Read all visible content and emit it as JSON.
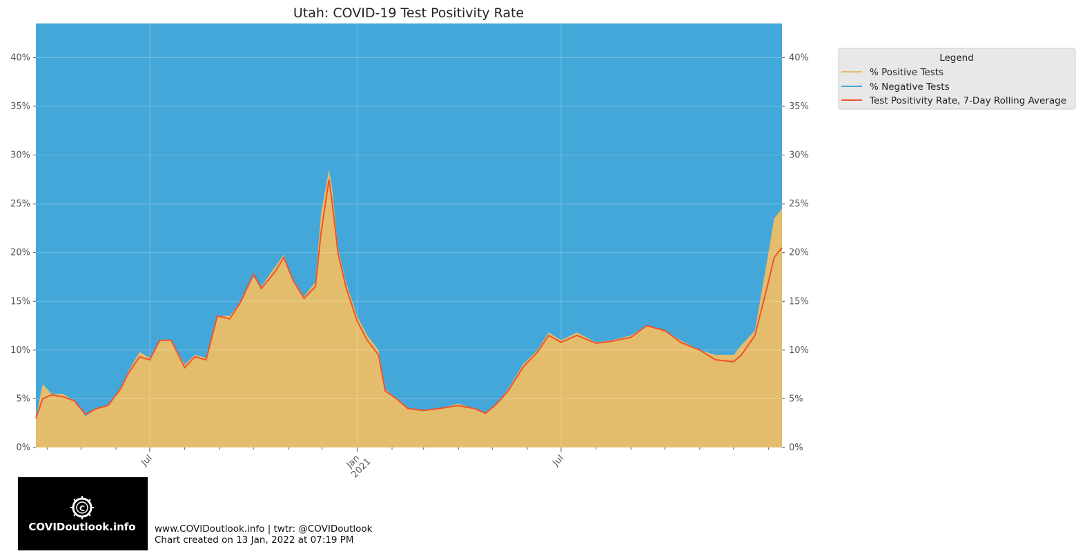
{
  "footer": {
    "line1": "www.COVIDoutlook.info | twtr: @COVIDoutlook",
    "line2": "Chart created on 13 Jan, 2022 at 07:19 PM",
    "logo_text": "COVIDoutlook.info"
  },
  "colors": {
    "positive": "#e3bd6b",
    "negative": "#44a7d9",
    "rolling": "#f0522b",
    "legend_bg": "#e8e8e8"
  },
  "chart_data": {
    "type": "area",
    "title": "Utah: COVID-19 Test Positivity Rate",
    "xlabel": "",
    "ylabel": "",
    "ylim": [
      0,
      43.5
    ],
    "xlim": [
      "2020-03-22",
      "2022-01-13"
    ],
    "y_ticks": [
      0,
      5,
      10,
      15,
      20,
      25,
      30,
      35,
      40
    ],
    "y_tick_labels": [
      "0%",
      "5%",
      "10%",
      "15%",
      "20%",
      "25%",
      "30%",
      "35%",
      "40%"
    ],
    "x_major_ticks": [
      {
        "date": "2020-07-01",
        "label": "Jul"
      },
      {
        "date": "2021-01-01",
        "label": "Jan\n2021"
      },
      {
        "date": "2021-07-01",
        "label": "Jul"
      }
    ],
    "x_minor_ticks": [
      "2020-04-01",
      "2020-05-01",
      "2020-06-01",
      "2020-08-01",
      "2020-09-01",
      "2020-10-01",
      "2020-11-01",
      "2020-12-01",
      "2021-02-01",
      "2021-03-01",
      "2021-04-01",
      "2021-05-01",
      "2021-06-01",
      "2021-08-01",
      "2021-09-01",
      "2021-10-01",
      "2021-11-01",
      "2021-12-01",
      "2022-01-01"
    ],
    "grid": true,
    "legend": {
      "title": "Legend",
      "position": "outside top-right"
    },
    "series": [
      {
        "name": "% Positive Tests",
        "kind": "stacked-area-bottom",
        "color": "#e3bd6b",
        "points": [
          [
            "2020-03-22",
            3.0
          ],
          [
            "2020-03-28",
            6.5
          ],
          [
            "2020-04-05",
            5.5
          ],
          [
            "2020-04-15",
            5.5
          ],
          [
            "2020-04-25",
            4.8
          ],
          [
            "2020-05-05",
            3.2
          ],
          [
            "2020-05-15",
            4.0
          ],
          [
            "2020-05-25",
            4.3
          ],
          [
            "2020-06-05",
            6.0
          ],
          [
            "2020-06-12",
            7.8
          ],
          [
            "2020-06-22",
            9.8
          ],
          [
            "2020-07-01",
            9.2
          ],
          [
            "2020-07-10",
            11.0
          ],
          [
            "2020-07-20",
            11.0
          ],
          [
            "2020-08-01",
            8.5
          ],
          [
            "2020-08-10",
            9.5
          ],
          [
            "2020-08-20",
            9.2
          ],
          [
            "2020-08-30",
            13.5
          ],
          [
            "2020-09-10",
            13.5
          ],
          [
            "2020-09-20",
            15.0
          ],
          [
            "2020-10-01",
            17.5
          ],
          [
            "2020-10-08",
            16.5
          ],
          [
            "2020-10-20",
            18.5
          ],
          [
            "2020-10-28",
            19.8
          ],
          [
            "2020-11-05",
            17.0
          ],
          [
            "2020-11-15",
            15.5
          ],
          [
            "2020-11-25",
            17.0
          ],
          [
            "2020-11-30",
            24.0
          ],
          [
            "2020-12-07",
            28.5
          ],
          [
            "2020-12-10",
            26.5
          ],
          [
            "2020-12-15",
            20.5
          ],
          [
            "2020-12-22",
            17.0
          ],
          [
            "2021-01-01",
            13.5
          ],
          [
            "2021-01-10",
            11.5
          ],
          [
            "2021-01-20",
            10.0
          ],
          [
            "2021-01-26",
            6.0
          ],
          [
            "2021-02-05",
            5.0
          ],
          [
            "2021-02-15",
            4.0
          ],
          [
            "2021-03-01",
            3.8
          ],
          [
            "2021-03-15",
            4.0
          ],
          [
            "2021-04-01",
            4.5
          ],
          [
            "2021-04-15",
            4.0
          ],
          [
            "2021-04-25",
            3.5
          ],
          [
            "2021-05-05",
            4.5
          ],
          [
            "2021-05-15",
            6.0
          ],
          [
            "2021-05-28",
            8.5
          ],
          [
            "2021-06-10",
            10.0
          ],
          [
            "2021-06-20",
            11.8
          ],
          [
            "2021-07-01",
            11.0
          ],
          [
            "2021-07-15",
            11.8
          ],
          [
            "2021-08-01",
            10.8
          ],
          [
            "2021-08-15",
            11.0
          ],
          [
            "2021-09-01",
            11.5
          ],
          [
            "2021-09-15",
            12.5
          ],
          [
            "2021-10-01",
            12.0
          ],
          [
            "2021-10-15",
            11.0
          ],
          [
            "2021-11-01",
            10.0
          ],
          [
            "2021-11-15",
            9.5
          ],
          [
            "2021-12-01",
            9.5
          ],
          [
            "2021-12-08",
            10.5
          ],
          [
            "2021-12-20",
            12.0
          ],
          [
            "2022-01-01",
            20.0
          ],
          [
            "2022-01-06",
            23.5
          ],
          [
            "2022-01-13",
            24.5
          ]
        ]
      },
      {
        "name": "% Negative Tests",
        "kind": "stacked-area-top",
        "color": "#44a7d9"
      },
      {
        "name": "Test Positivity Rate, 7-Day Rolling Average",
        "kind": "line",
        "color": "#f0522b",
        "points": [
          [
            "2020-03-22",
            3.0
          ],
          [
            "2020-03-28",
            5.0
          ],
          [
            "2020-04-05",
            5.4
          ],
          [
            "2020-04-15",
            5.2
          ],
          [
            "2020-04-25",
            4.8
          ],
          [
            "2020-05-05",
            3.4
          ],
          [
            "2020-05-15",
            4.0
          ],
          [
            "2020-05-25",
            4.3
          ],
          [
            "2020-06-05",
            6.0
          ],
          [
            "2020-06-12",
            7.6
          ],
          [
            "2020-06-22",
            9.3
          ],
          [
            "2020-07-01",
            9.0
          ],
          [
            "2020-07-10",
            11.0
          ],
          [
            "2020-07-20",
            11.0
          ],
          [
            "2020-08-01",
            8.2
          ],
          [
            "2020-08-10",
            9.3
          ],
          [
            "2020-08-20",
            9.0
          ],
          [
            "2020-08-30",
            13.5
          ],
          [
            "2020-09-10",
            13.2
          ],
          [
            "2020-09-20",
            15.0
          ],
          [
            "2020-10-01",
            17.8
          ],
          [
            "2020-10-08",
            16.3
          ],
          [
            "2020-10-20",
            18.0
          ],
          [
            "2020-10-28",
            19.5
          ],
          [
            "2020-11-05",
            17.2
          ],
          [
            "2020-11-15",
            15.3
          ],
          [
            "2020-11-25",
            16.5
          ],
          [
            "2020-11-30",
            22.0
          ],
          [
            "2020-12-07",
            27.5
          ],
          [
            "2020-12-10",
            25.0
          ],
          [
            "2020-12-15",
            20.0
          ],
          [
            "2020-12-22",
            16.5
          ],
          [
            "2021-01-01",
            13.0
          ],
          [
            "2021-01-10",
            11.0
          ],
          [
            "2021-01-20",
            9.5
          ],
          [
            "2021-01-26",
            5.8
          ],
          [
            "2021-02-05",
            5.0
          ],
          [
            "2021-02-15",
            4.0
          ],
          [
            "2021-03-01",
            3.8
          ],
          [
            "2021-03-15",
            4.0
          ],
          [
            "2021-04-01",
            4.3
          ],
          [
            "2021-04-15",
            4.0
          ],
          [
            "2021-04-25",
            3.5
          ],
          [
            "2021-05-05",
            4.5
          ],
          [
            "2021-05-15",
            5.8
          ],
          [
            "2021-05-28",
            8.2
          ],
          [
            "2021-06-10",
            9.8
          ],
          [
            "2021-06-20",
            11.5
          ],
          [
            "2021-07-01",
            10.8
          ],
          [
            "2021-07-15",
            11.5
          ],
          [
            "2021-08-01",
            10.7
          ],
          [
            "2021-08-15",
            10.9
          ],
          [
            "2021-09-01",
            11.3
          ],
          [
            "2021-09-15",
            12.5
          ],
          [
            "2021-10-01",
            12.0
          ],
          [
            "2021-10-15",
            10.8
          ],
          [
            "2021-11-01",
            10.0
          ],
          [
            "2021-11-15",
            9.0
          ],
          [
            "2021-12-01",
            8.8
          ],
          [
            "2021-12-08",
            9.5
          ],
          [
            "2021-12-20",
            11.5
          ],
          [
            "2022-01-01",
            17.0
          ],
          [
            "2022-01-06",
            19.5
          ],
          [
            "2022-01-13",
            20.5
          ]
        ]
      }
    ]
  }
}
